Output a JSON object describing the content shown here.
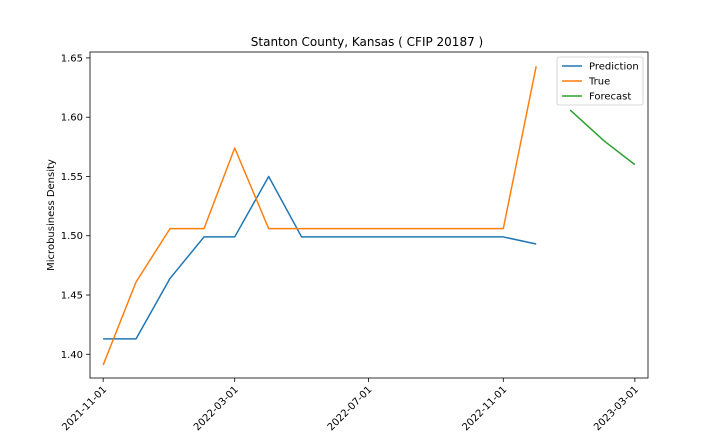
{
  "chart_data": {
    "type": "line",
    "title": "Stanton County, Kansas ( CFIP 20187 )",
    "xlabel": "",
    "ylabel": "Microbusiness Density",
    "ylim": [
      1.38,
      1.655
    ],
    "xlim": [
      "2021-10-20",
      "2023-03-13"
    ],
    "x_ticks": [
      "2021-11-01",
      "2022-03-01",
      "2022-07-01",
      "2022-11-01",
      "2023-03-01"
    ],
    "y_ticks": [
      1.4,
      1.45,
      1.5,
      1.55,
      1.6,
      1.65
    ],
    "grid": false,
    "legend": "top-right",
    "series": [
      {
        "name": "Prediction",
        "color": "#1f77b4",
        "x": [
          "2021-11-01",
          "2021-12-01",
          "2022-01-01",
          "2022-02-01",
          "2022-03-01",
          "2022-04-01",
          "2022-05-01",
          "2022-06-01",
          "2022-07-01",
          "2022-08-01",
          "2022-09-01",
          "2022-10-01",
          "2022-11-01",
          "2022-12-01"
        ],
        "values": [
          1.413,
          1.413,
          1.464,
          1.499,
          1.499,
          1.55,
          1.499,
          1.499,
          1.499,
          1.499,
          1.499,
          1.499,
          1.499,
          1.493
        ]
      },
      {
        "name": "True",
        "color": "#ff7f0e",
        "x": [
          "2021-11-01",
          "2021-12-01",
          "2022-01-01",
          "2022-02-01",
          "2022-03-01",
          "2022-04-01",
          "2022-05-01",
          "2022-06-01",
          "2022-07-01",
          "2022-08-01",
          "2022-09-01",
          "2022-10-01",
          "2022-11-01",
          "2022-12-01"
        ],
        "values": [
          1.391,
          1.461,
          1.506,
          1.506,
          1.574,
          1.506,
          1.506,
          1.506,
          1.506,
          1.506,
          1.506,
          1.506,
          1.506,
          1.643
        ]
      },
      {
        "name": "Forecast",
        "color": "#2ca02c",
        "x": [
          "2023-01-01",
          "2023-02-01",
          "2023-03-01"
        ],
        "values": [
          1.606,
          1.58,
          1.56
        ]
      }
    ]
  }
}
